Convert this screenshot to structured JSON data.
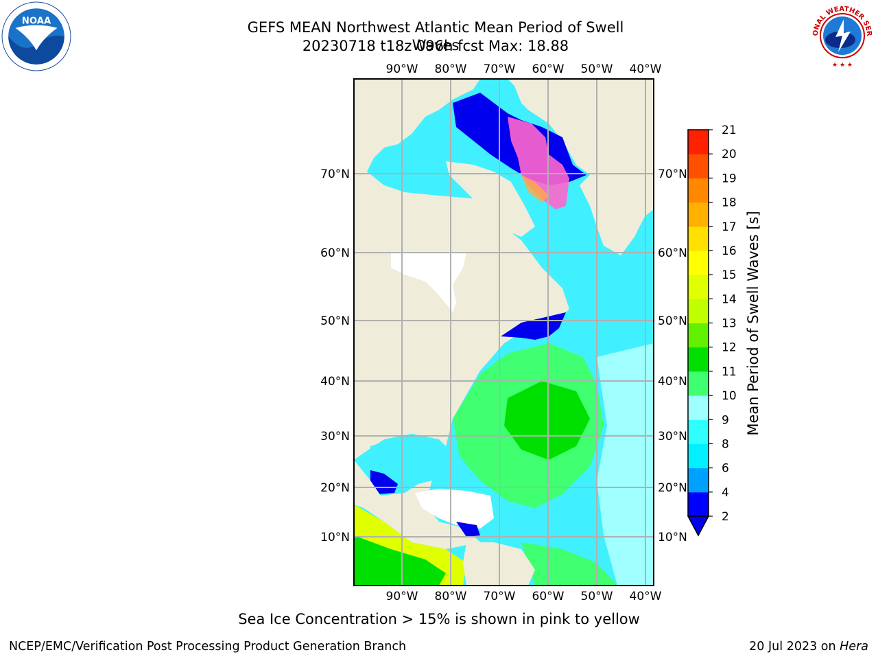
{
  "title_line1": "GEFS MEAN Northwest Atlantic Mean Period of Swell Waves",
  "title_line2": "20230718 t18z 096h fcst   Max: 18.88",
  "map": {
    "lon_ticks": [
      "90°W",
      "80°W",
      "70°W",
      "60°W",
      "50°W",
      "40°W"
    ],
    "lon_values": [
      -90,
      -80,
      -70,
      -60,
      -50,
      -40
    ],
    "lat_ticks": [
      "70°N",
      "60°N",
      "50°N",
      "40°N",
      "30°N",
      "20°N",
      "10°N"
    ],
    "lat_values": [
      70,
      60,
      50,
      40,
      30,
      20,
      10
    ]
  },
  "colorbar": {
    "label": "Mean Period of Swell Waves [s]",
    "tick_labels": [
      "2",
      "4",
      "6",
      "8",
      "9",
      "10",
      "11",
      "12",
      "13",
      "14",
      "15",
      "16",
      "17",
      "18",
      "19",
      "20",
      "21"
    ],
    "colors": [
      "#0000ff",
      "#00a0ff",
      "#00f0ff",
      "#30ffff",
      "#a0ffff",
      "#40ff70",
      "#00e000",
      "#60f000",
      "#c0ff00",
      "#e0ff00",
      "#ffff00",
      "#ffe000",
      "#ffb000",
      "#ff8800",
      "#ff5000",
      "#ff2000"
    ],
    "extend_color": "#0000ee"
  },
  "caption": "Sea Ice Concentration > 15% is shown in pink to yellow",
  "footer_left": "NCEP/EMC/Verification Post Processing Product Generation Branch",
  "footer_right_prefix": "20 Jul 2023 on ",
  "footer_right_host": "Hera",
  "logos": {
    "noaa_text": "NOAA",
    "nws_text": "NATIONAL WEATHER SERVICE"
  },
  "colors": {
    "land": "#efedda",
    "grid": "#b0b0b0",
    "ice_pink": "#ff66cc",
    "ice_orange": "#ffaa44"
  }
}
